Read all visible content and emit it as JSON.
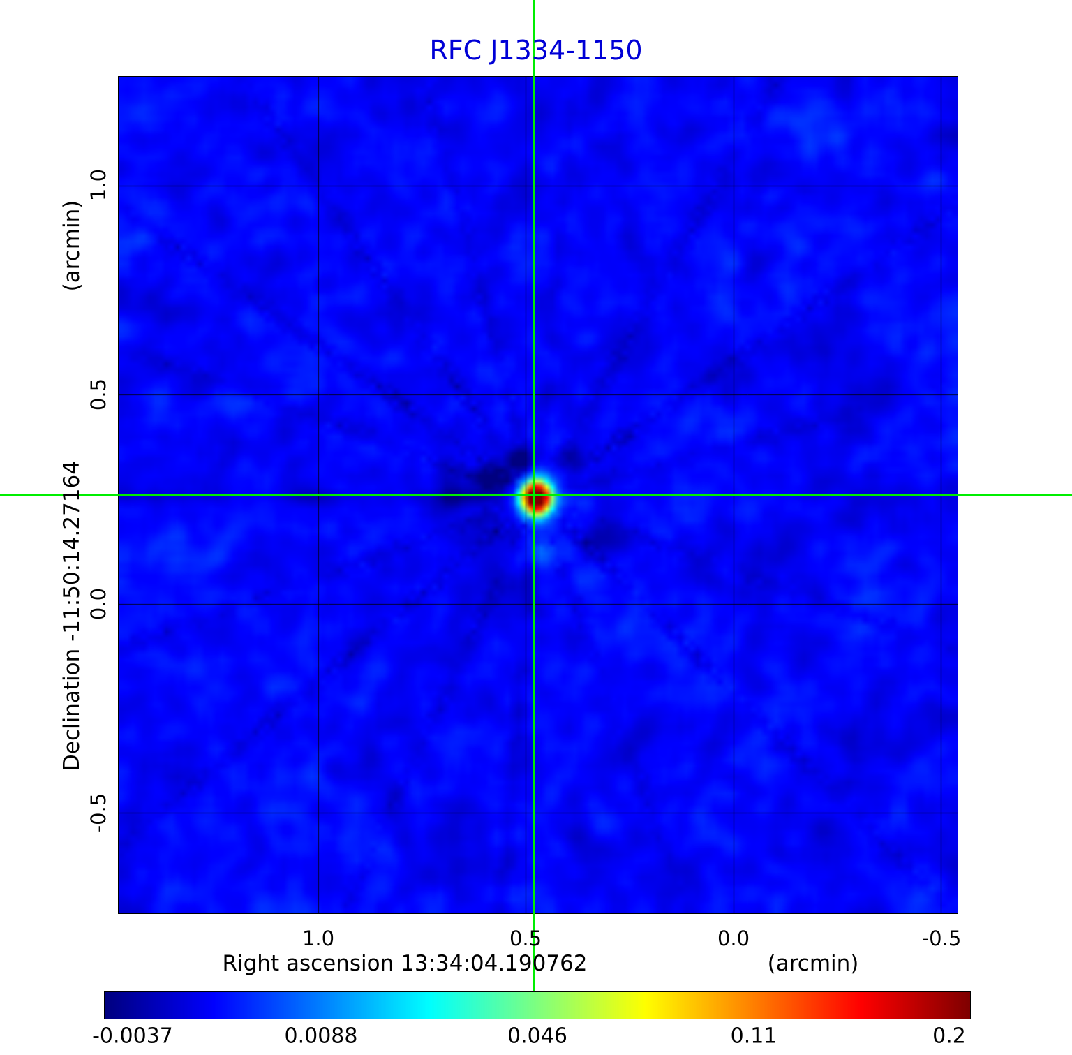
{
  "chart_data": {
    "type": "heatmap",
    "title": "RFC J1334-1150",
    "x_axis": {
      "label": "Right ascension  13:34:04.190762",
      "unit": "(arcmin)",
      "tick_labels": [
        "1.0",
        "0.5",
        "0.0",
        "-0.5"
      ],
      "tick_values": [
        1.0,
        0.5,
        0.0,
        -0.5
      ],
      "range": [
        1.48,
        -0.54
      ]
    },
    "y_axis": {
      "label": "Declination  -11:50:14.27164",
      "unit": "(arcmin)",
      "tick_labels": [
        "1.0",
        "0.5",
        "0.0",
        "-0.5"
      ],
      "tick_values": [
        1.0,
        0.5,
        0.0,
        -0.5
      ],
      "range": [
        -0.74,
        1.26
      ]
    },
    "source": {
      "name": "RFC J1334-1150",
      "ra": "13:34:04.190762",
      "dec": "-11:50:14.27164",
      "marker_x_arcmin": 0.48,
      "marker_y_arcmin": 0.26,
      "peak_value": 0.2
    },
    "colorbar": {
      "colormap": "jet",
      "tick_labels": [
        "-0.0037",
        "0.0088",
        "0.046",
        "0.11",
        "0.2"
      ]
    },
    "colors": {
      "title": "#0000d6",
      "crosshair": "#00ee00",
      "grid": "#000000",
      "background": "#ffffff"
    }
  }
}
